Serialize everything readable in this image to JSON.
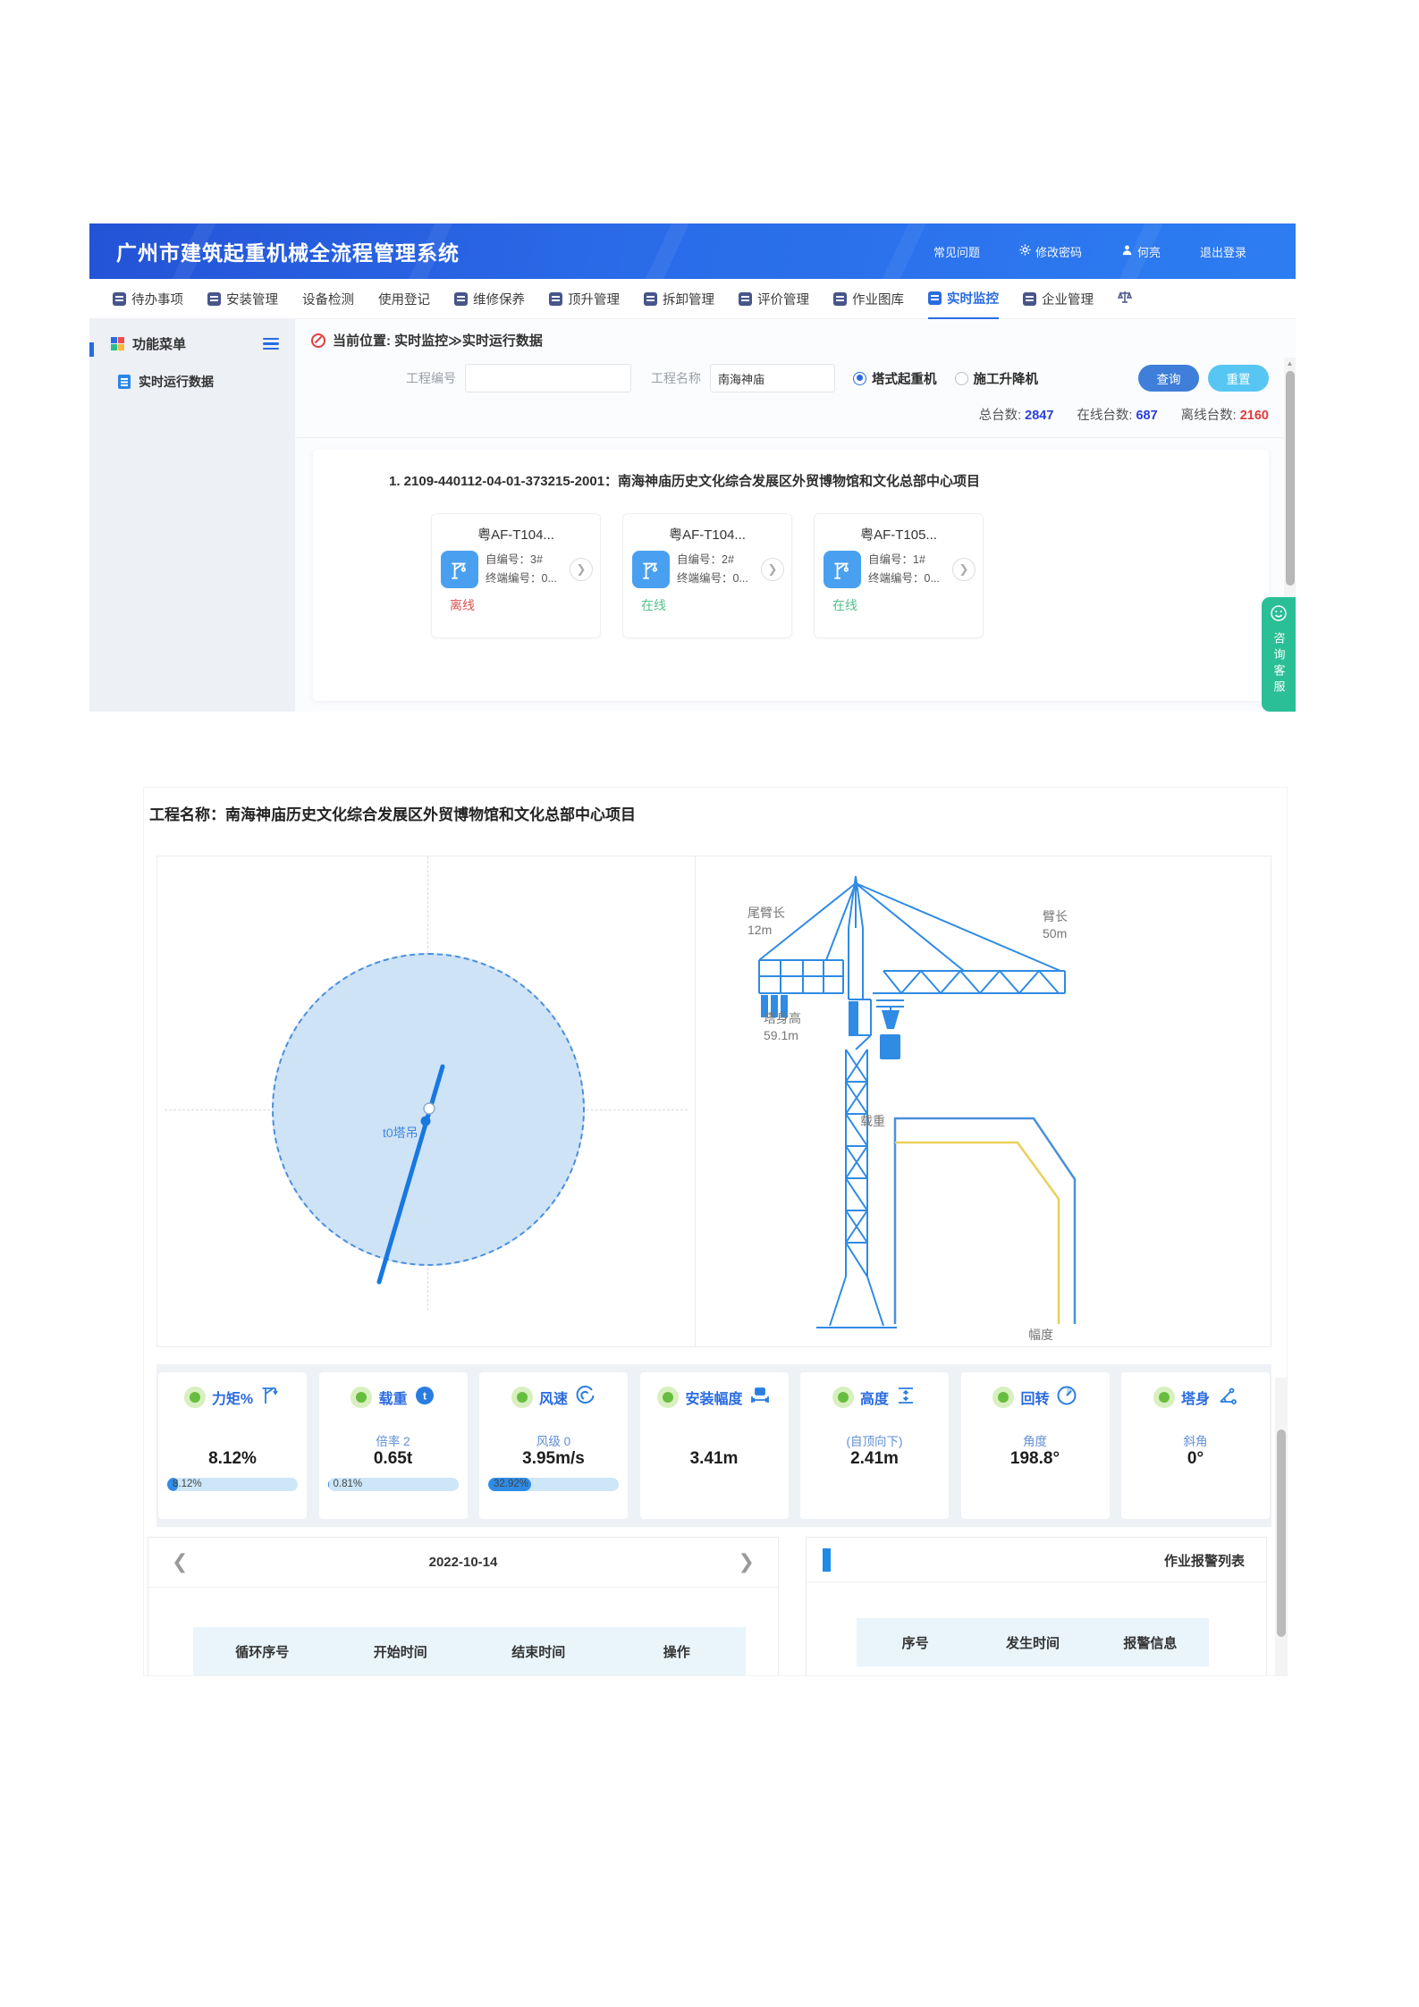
{
  "colors": {
    "brand_blue": "#2a6be8",
    "accent_blue": "#2a6be0",
    "link_blue": "#2940d8",
    "danger_red": "#e03c3c",
    "offline_red": "#e05252",
    "online_green": "#52c08a",
    "service_green": "#2bbf95",
    "metric_green_dot": "#67bd3f",
    "bar_fill": "#2e8ce8",
    "table_head_bg": "#e9f4fb",
    "chart_yellow": "#e9d05a"
  },
  "header": {
    "title": "广州市建筑起重机械全流程管理系统",
    "menu": [
      {
        "label": "常见问题"
      },
      {
        "label": "修改密码"
      },
      {
        "label": "何亮"
      },
      {
        "label": "退出登录"
      }
    ]
  },
  "nav": {
    "items": [
      {
        "label": "待办事项"
      },
      {
        "label": "安装管理"
      },
      {
        "label": "设备检测"
      },
      {
        "label": "使用登记"
      },
      {
        "label": "维修保养"
      },
      {
        "label": "顶升管理"
      },
      {
        "label": "拆卸管理"
      },
      {
        "label": "评价管理"
      },
      {
        "label": "作业图库"
      },
      {
        "label": "实时监控"
      },
      {
        "label": "企业管理"
      },
      {
        "label": ""
      }
    ]
  },
  "sidebar": {
    "title": "功能菜单",
    "item": "实时运行数据"
  },
  "breadcrumb": "当前位置: 实时监控≫实时运行数据",
  "filter": {
    "code_label": "工程编号",
    "name_label": "工程名称",
    "name_value": "南海神庙",
    "radio_tower": "塔式起重机",
    "radio_lift": "施工升降机",
    "search": "查询",
    "reset": "重置"
  },
  "stats": {
    "total_label": "总台数:",
    "total_value": "2847",
    "online_label": "在线台数:",
    "online_value": "687",
    "offline_label": "离线台数:",
    "offline_value": "2160"
  },
  "project_list": {
    "title": "1. 2109-440112-04-01-373215-2001：南海神庙历史文化综合发展区外贸博物馆和文化总部中心项目",
    "cranes": [
      {
        "name": "粤AF-T104...",
        "sn_label": "自编号：3#",
        "terminal_label": "终端编号：0...",
        "status": "离线",
        "status_color": "#e05252"
      },
      {
        "name": "粤AF-T104...",
        "sn_label": "自编号：2#",
        "terminal_label": "终端编号：0...",
        "status": "在线",
        "status_color": "#52c08a"
      },
      {
        "name": "粤AF-T105...",
        "sn_label": "自编号：1#",
        "terminal_label": "终端编号：0...",
        "status": "在线",
        "status_color": "#52c08a"
      }
    ]
  },
  "service_tab": "咨询客服",
  "monitor": {
    "title": "工程名称：南海神庙历史文化综合发展区外贸博物馆和文化总部中心项目",
    "radar_label": "t0塔吊",
    "diagram": {
      "tail_label": "尾臂长",
      "tail_value": "12m",
      "jib_label": "臂长",
      "jib_value": "50m",
      "tower_label": "塔身高",
      "tower_value": "59.1m",
      "load_label": "载重",
      "range_label": "幅度"
    },
    "metrics": [
      {
        "label": "力矩%",
        "sub": "",
        "value": "8.12%",
        "bar_text": "8.12%",
        "bar_pct": 8.12
      },
      {
        "label": "载重",
        "sub": "倍率 2",
        "value": "0.65t",
        "bar_text": "0.81%",
        "bar_pct": 0.81
      },
      {
        "label": "风速",
        "sub": "风级 0",
        "value": "3.95m/s",
        "bar_text": "32.92%",
        "bar_pct": 32.92
      },
      {
        "label": "安装幅度",
        "sub": "",
        "value": "3.41m"
      },
      {
        "label": "高度",
        "sub": "(自顶向下)",
        "value": "2.41m"
      },
      {
        "label": "回转",
        "sub": "角度",
        "value": "198.8°"
      },
      {
        "label": "塔身",
        "sub": "斜角",
        "value": "0°"
      }
    ],
    "cycles": {
      "date": "2022-10-14",
      "columns": [
        "循环序号",
        "开始时间",
        "结束时间",
        "操作"
      ]
    },
    "alarms": {
      "title": "作业报警列表",
      "columns": [
        "序号",
        "发生时间",
        "报警信息"
      ]
    }
  }
}
